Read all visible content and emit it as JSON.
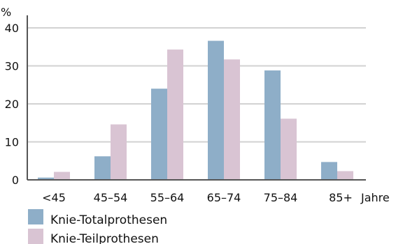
{
  "chart_data": {
    "type": "bar",
    "title": "",
    "xlabel": "Jahre",
    "ylabel": "%",
    "ylim": [
      0,
      40
    ],
    "yticks": [
      0,
      10,
      20,
      30,
      40
    ],
    "grid": true,
    "legend_position": "bottom-left",
    "categories": [
      "<45",
      "45–54",
      "55–64",
      "65–74",
      "75–84",
      "85+"
    ],
    "series": [
      {
        "name": "Knie-Totalprothesen",
        "color": "#8eaec8",
        "values": [
          0.6,
          6.2,
          24.0,
          36.6,
          28.8,
          4.7
        ]
      },
      {
        "name": "Knie-Teilprothesen",
        "color": "#d9c4d3",
        "values": [
          2.1,
          14.6,
          34.3,
          31.7,
          16.1,
          2.3
        ]
      }
    ]
  }
}
